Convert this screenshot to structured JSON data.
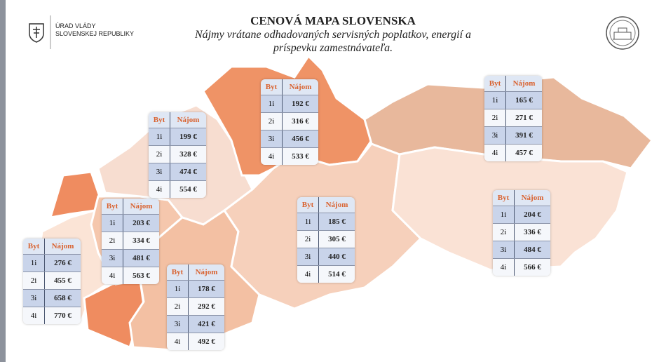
{
  "header": {
    "org_line1": "ÚRAD VLÁDY",
    "org_line2": "SLOVENSKEJ REPUBLIKY",
    "title": "CENOVÁ MAPA SLOVENSKA",
    "subtitle_line1": "Nájmy vrátane odhadovaných servisných poplatkov, energií a",
    "subtitle_line2": "príspevku zamestnávateľa."
  },
  "regions": [
    {
      "columns": [
        "Byt",
        "Nájom"
      ],
      "rows": [
        [
          "1i",
          "276 €"
        ],
        [
          "2i",
          "455 €"
        ],
        [
          "3i",
          "658 €"
        ],
        [
          "4i",
          "770 €"
        ]
      ]
    },
    {
      "columns": [
        "Byt",
        "Nájom"
      ],
      "rows": [
        [
          "1i",
          "203 €"
        ],
        [
          "2i",
          "334 €"
        ],
        [
          "3i",
          "481 €"
        ],
        [
          "4i",
          "563 €"
        ]
      ]
    },
    {
      "columns": [
        "Byt",
        "Nájom"
      ],
      "rows": [
        [
          "1i",
          "199 €"
        ],
        [
          "2i",
          "328 €"
        ],
        [
          "3i",
          "474 €"
        ],
        [
          "4i",
          "554 €"
        ]
      ]
    },
    {
      "columns": [
        "Byt",
        "Nájom"
      ],
      "rows": [
        [
          "1i",
          "178 €"
        ],
        [
          "2i",
          "292 €"
        ],
        [
          "3i",
          "421 €"
        ],
        [
          "4i",
          "492 €"
        ]
      ]
    },
    {
      "columns": [
        "Byt",
        "Nájom"
      ],
      "rows": [
        [
          "1i",
          "192 €"
        ],
        [
          "2i",
          "316 €"
        ],
        [
          "3i",
          "456 €"
        ],
        [
          "4i",
          "533 €"
        ]
      ]
    },
    {
      "columns": [
        "Byt",
        "Nájom"
      ],
      "rows": [
        [
          "1i",
          "185 €"
        ],
        [
          "2i",
          "305 €"
        ],
        [
          "3i",
          "440 €"
        ],
        [
          "4i",
          "514 €"
        ]
      ]
    },
    {
      "columns": [
        "Byt",
        "Nájom"
      ],
      "rows": [
        [
          "1i",
          "165 €"
        ],
        [
          "2i",
          "271 €"
        ],
        [
          "3i",
          "391 €"
        ],
        [
          "4i",
          "457 €"
        ]
      ]
    },
    {
      "columns": [
        "Byt",
        "Nájom"
      ],
      "rows": [
        [
          "1i",
          "204 €"
        ],
        [
          "2i",
          "336 €"
        ],
        [
          "3i",
          "484 €"
        ],
        [
          "4i",
          "566 €"
        ]
      ]
    }
  ]
}
